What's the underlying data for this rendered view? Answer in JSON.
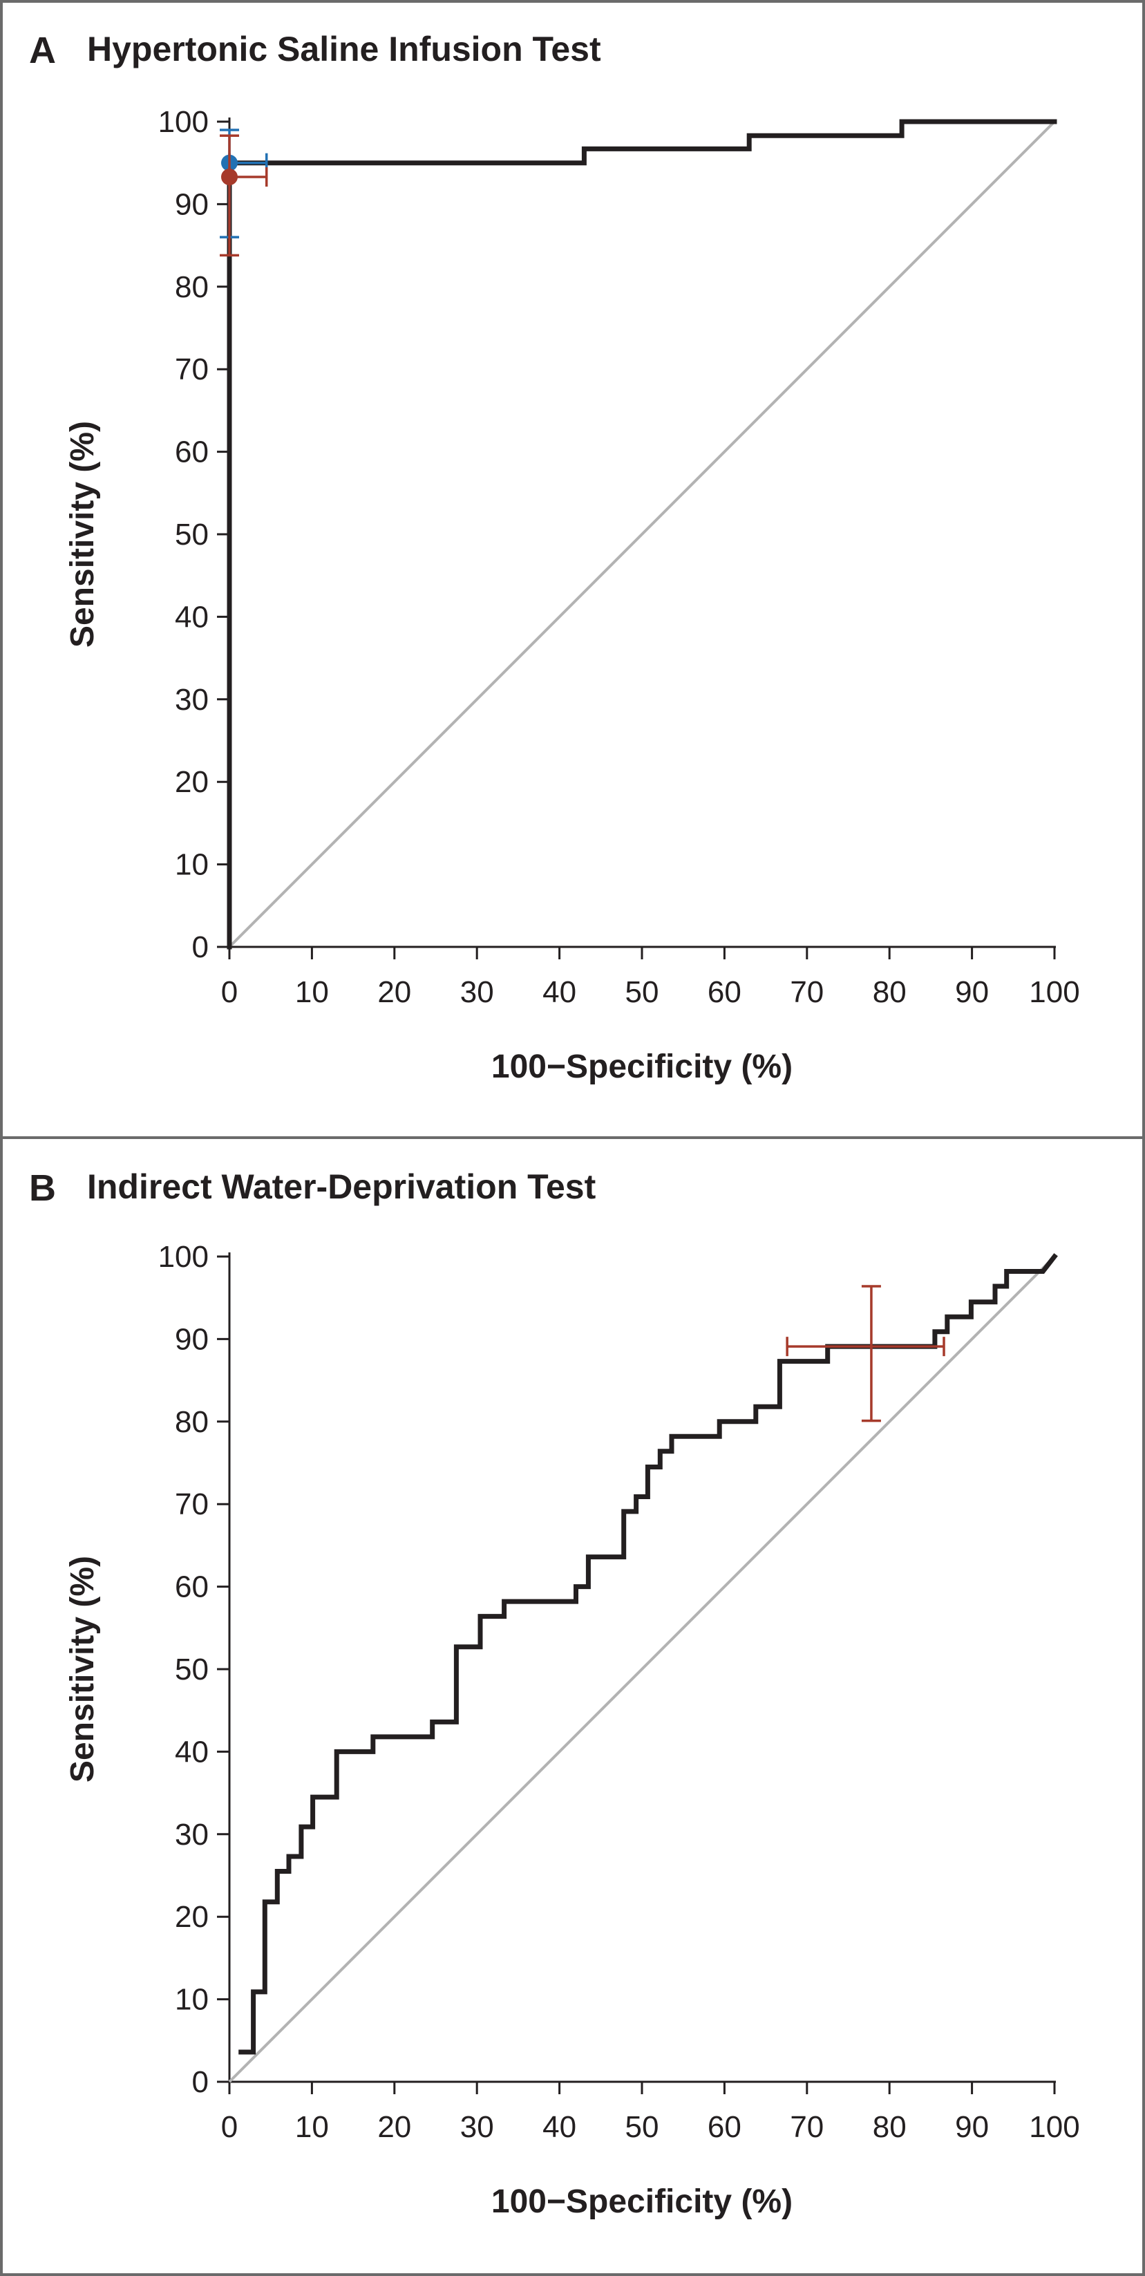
{
  "chart_data": [
    {
      "type": "line",
      "panel_letter": "A",
      "title": "Hypertonic Saline Infusion Test",
      "xlabel": "100−Specificity (%)",
      "ylabel": "Sensitivity (%)",
      "xlim": [
        0,
        100
      ],
      "ylim": [
        0,
        100
      ],
      "xticks": [
        0,
        10,
        20,
        30,
        40,
        50,
        60,
        70,
        80,
        90,
        100
      ],
      "yticks": [
        0,
        10,
        20,
        30,
        40,
        50,
        60,
        70,
        80,
        90,
        100
      ],
      "grid": false,
      "series": [
        {
          "kind": "roc-curve",
          "color": "#231f20",
          "points": [
            [
              0,
              0
            ],
            [
              0,
              95
            ],
            [
              43,
              95
            ],
            [
              43,
              96.7
            ],
            [
              63,
              96.7
            ],
            [
              63,
              98.3
            ],
            [
              81.5,
              98.3
            ],
            [
              81.5,
              100
            ],
            [
              100,
              100
            ]
          ]
        },
        {
          "kind": "reference-line",
          "color": "#b3b3b3",
          "points": [
            [
              0,
              0
            ],
            [
              100,
              100
            ]
          ]
        }
      ],
      "markers": [
        {
          "color": "#2271b3",
          "x": 0,
          "y": 95,
          "x_ci": [
            0,
            4.5
          ],
          "y_ci": [
            86,
            99
          ]
        },
        {
          "color": "#a63a2b",
          "x": 0,
          "y": 93.3,
          "x_ci": [
            0,
            4.5
          ],
          "y_ci": [
            83.8,
            98.3
          ]
        }
      ]
    },
    {
      "type": "line",
      "panel_letter": "B",
      "title": "Indirect Water-Deprivation Test",
      "xlabel": "100−Specificity (%)",
      "ylabel": "Sensitivity (%)",
      "xlim": [
        0,
        100
      ],
      "ylim": [
        0,
        100
      ],
      "xticks": [
        0,
        10,
        20,
        30,
        40,
        50,
        60,
        70,
        80,
        90,
        100
      ],
      "yticks": [
        0,
        10,
        20,
        30,
        40,
        50,
        60,
        70,
        80,
        90,
        100
      ],
      "grid": false,
      "series": [
        {
          "kind": "roc-curve",
          "color": "#231f20",
          "points": [
            [
              1.4,
              3.6
            ],
            [
              2.9,
              3.6
            ],
            [
              2.9,
              10.9
            ],
            [
              4.3,
              10.9
            ],
            [
              4.3,
              21.8
            ],
            [
              5.8,
              21.8
            ],
            [
              5.8,
              25.5
            ],
            [
              7.2,
              25.5
            ],
            [
              7.2,
              27.3
            ],
            [
              8.7,
              27.3
            ],
            [
              8.7,
              30.9
            ],
            [
              10.1,
              30.9
            ],
            [
              10.1,
              34.5
            ],
            [
              13.0,
              34.5
            ],
            [
              13.0,
              40.0
            ],
            [
              17.4,
              40.0
            ],
            [
              17.4,
              41.8
            ],
            [
              24.6,
              41.8
            ],
            [
              24.6,
              43.6
            ],
            [
              27.5,
              43.6
            ],
            [
              27.5,
              52.7
            ],
            [
              30.4,
              52.7
            ],
            [
              30.4,
              56.4
            ],
            [
              33.3,
              56.4
            ],
            [
              33.3,
              58.2
            ],
            [
              42.0,
              58.2
            ],
            [
              42.0,
              60.0
            ],
            [
              43.5,
              60.0
            ],
            [
              43.5,
              63.6
            ],
            [
              47.8,
              63.6
            ],
            [
              47.8,
              69.1
            ],
            [
              49.3,
              69.1
            ],
            [
              49.3,
              70.9
            ],
            [
              50.7,
              70.9
            ],
            [
              50.7,
              74.5
            ],
            [
              52.2,
              74.5
            ],
            [
              52.2,
              76.4
            ],
            [
              53.6,
              76.4
            ],
            [
              53.6,
              78.2
            ],
            [
              59.4,
              78.2
            ],
            [
              59.4,
              80.0
            ],
            [
              63.8,
              80.0
            ],
            [
              63.8,
              81.8
            ],
            [
              66.7,
              81.8
            ],
            [
              66.7,
              87.3
            ],
            [
              72.5,
              87.3
            ],
            [
              72.5,
              89.1
            ],
            [
              85.5,
              89.1
            ],
            [
              85.5,
              90.9
            ],
            [
              87.0,
              90.9
            ],
            [
              87.0,
              92.7
            ],
            [
              89.9,
              92.7
            ],
            [
              89.9,
              94.5
            ],
            [
              92.8,
              94.5
            ],
            [
              92.8,
              96.4
            ],
            [
              94.2,
              96.4
            ],
            [
              94.2,
              98.2
            ],
            [
              98.6,
              98.2
            ],
            [
              100,
              100
            ]
          ]
        },
        {
          "kind": "reference-line",
          "color": "#b3b3b3",
          "points": [
            [
              0,
              0
            ],
            [
              100,
              100
            ]
          ]
        }
      ],
      "markers": [
        {
          "color": "#a63a2b",
          "x": 77.8,
          "y": 89.1,
          "x_ci": [
            67.6,
            86.6
          ],
          "y_ci": [
            80.1,
            96.4
          ],
          "dot": false
        }
      ]
    }
  ]
}
